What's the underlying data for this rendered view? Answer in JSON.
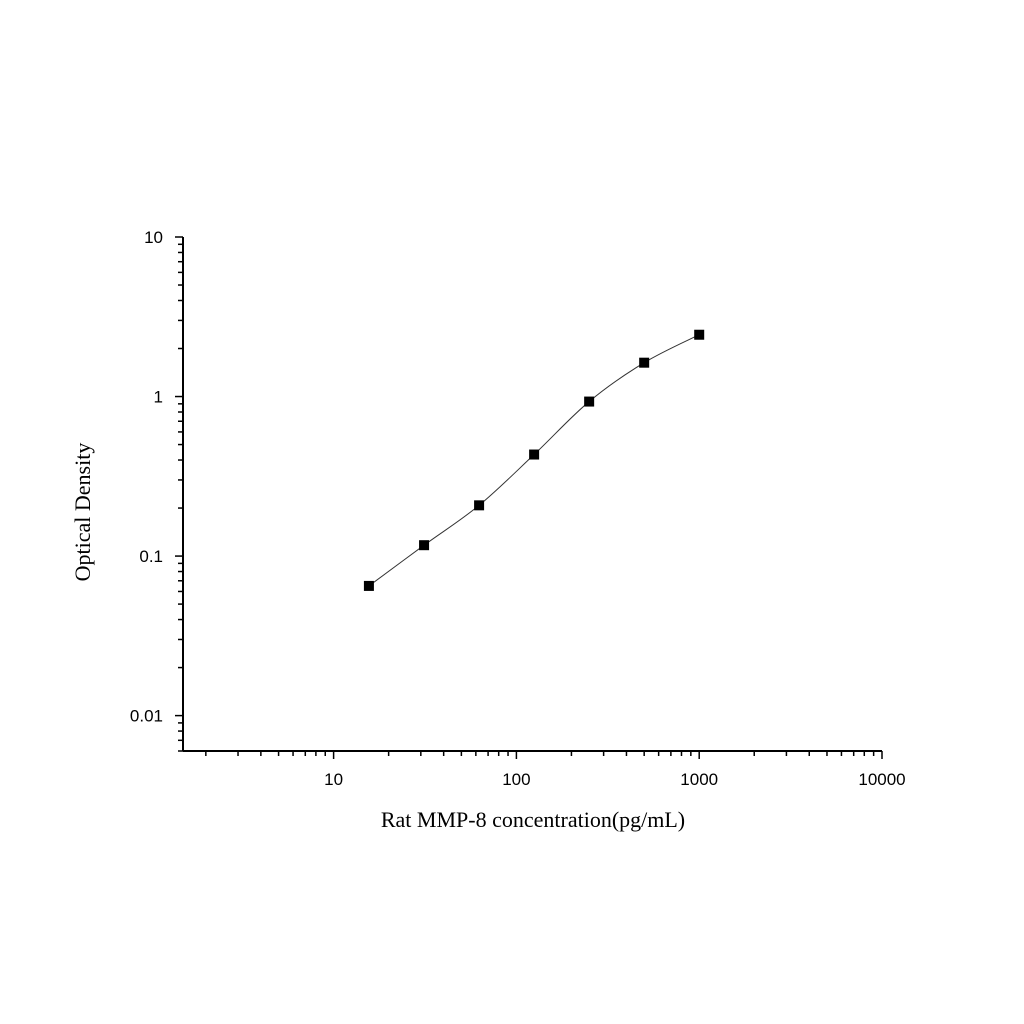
{
  "chart_data": {
    "type": "scatter",
    "title": "",
    "xlabel": "Rat MMP-8 concentration(pg/mL)",
    "ylabel": "Optical Density",
    "xscale": "log",
    "yscale": "log",
    "xlim": [
      1.5,
      10000
    ],
    "ylim": [
      0.006,
      10
    ],
    "xticks": [
      10,
      100,
      1000,
      10000
    ],
    "xtick_labels": [
      "10",
      "100",
      "1000",
      "10000"
    ],
    "yticks": [
      0.01,
      0.1,
      1,
      10
    ],
    "ytick_labels": [
      "0.01",
      "0.1",
      "1",
      "10"
    ],
    "grid": false,
    "marker": "square",
    "fit_curve": true,
    "colors": {
      "marker": "#000000",
      "curve": "#333333",
      "axis": "#000000"
    },
    "series": [
      {
        "x": [
          15.6,
          31.25,
          62.5,
          125,
          250,
          500,
          1000
        ],
        "y": [
          0.065,
          0.117,
          0.208,
          0.433,
          0.93,
          1.63,
          2.44
        ]
      }
    ]
  }
}
